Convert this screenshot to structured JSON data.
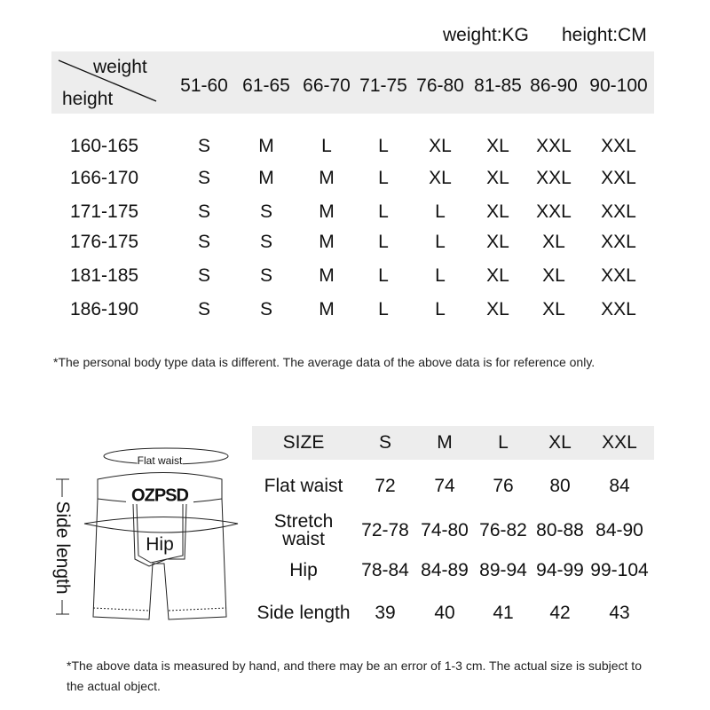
{
  "units": {
    "weight": "weight:KG",
    "height": "height:CM"
  },
  "table1": {
    "corner_top": "weight",
    "corner_bottom": "height",
    "columns": [
      "51-60",
      "61-65",
      "66-70",
      "71-75",
      "76-80",
      "81-85",
      "86-90",
      "90-100"
    ],
    "rows": [
      {
        "height": "160-165",
        "sizes": [
          "S",
          "M",
          "L",
          "L",
          "XL",
          "XL",
          "XXL",
          "XXL"
        ]
      },
      {
        "height": "166-170",
        "sizes": [
          "S",
          "M",
          "M",
          "L",
          "XL",
          "XL",
          "XXL",
          "XXL"
        ]
      },
      {
        "height": "171-175",
        "sizes": [
          "S",
          "S",
          "M",
          "L",
          "L",
          "XL",
          "XXL",
          "XXL"
        ]
      },
      {
        "height": "176-175",
        "sizes": [
          "S",
          "S",
          "M",
          "L",
          "L",
          "XL",
          "XL",
          "XXL"
        ]
      },
      {
        "height": "181-185",
        "sizes": [
          "S",
          "S",
          "M",
          "L",
          "L",
          "XL",
          "XL",
          "XXL"
        ]
      },
      {
        "height": "186-190",
        "sizes": [
          "S",
          "S",
          "M",
          "L",
          "L",
          "XL",
          "XL",
          "XXL"
        ]
      }
    ]
  },
  "note1": "*The personal body type data is different. The average data of the above data is for reference only.",
  "diagram": {
    "flat_waist": "Flat waist",
    "brand": "OZPSD",
    "hip": "Hip",
    "side_length": "Side length"
  },
  "table2": {
    "header": [
      "SIZE",
      "S",
      "M",
      "L",
      "XL",
      "XXL"
    ],
    "rows": [
      {
        "label": "Flat waist",
        "values": [
          "72",
          "74",
          "76",
          "80",
          "84"
        ]
      },
      {
        "label": "Stretch waist",
        "values": [
          "72-78",
          "74-80",
          "76-82",
          "80-88",
          "84-90"
        ]
      },
      {
        "label": "Hip",
        "values": [
          "78-84",
          "84-89",
          "89-94",
          "94-99",
          "99-104"
        ]
      },
      {
        "label": "Side length",
        "values": [
          "39",
          "40",
          "41",
          "42",
          "43"
        ]
      }
    ]
  },
  "note2_line1": "*The above data is measured by hand, and there may be an error of 1-3 cm. The actual size is subject to",
  "note2_line2": "the actual object."
}
